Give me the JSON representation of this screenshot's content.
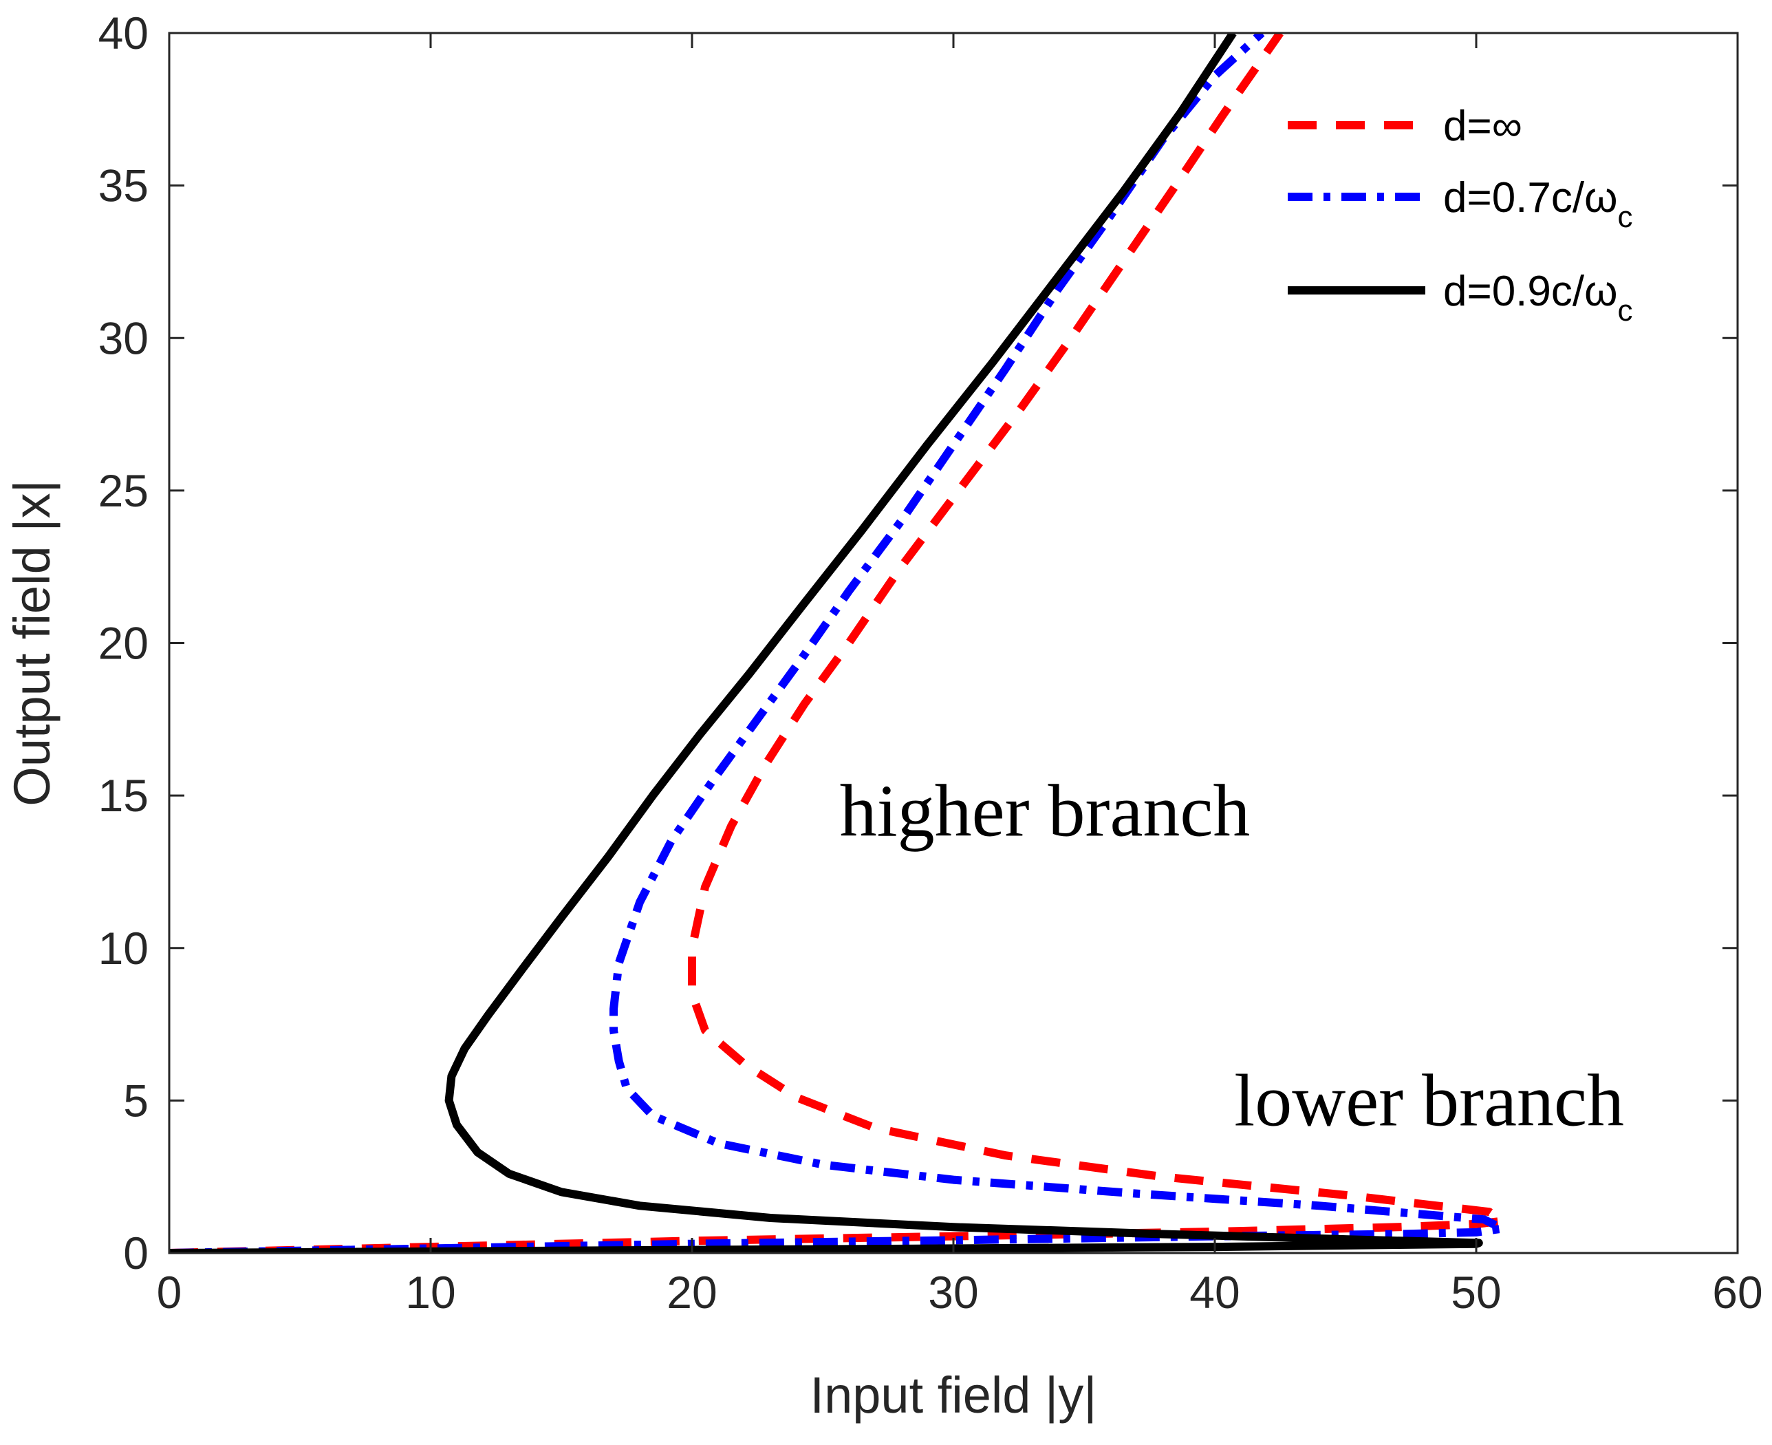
{
  "chart_data": {
    "type": "line",
    "title": "",
    "xlabel": "Input field |y|",
    "ylabel": "Output field |x|",
    "xlim": [
      0,
      60
    ],
    "ylim": [
      0,
      40
    ],
    "xticks": [
      0,
      10,
      20,
      30,
      40,
      50,
      60
    ],
    "yticks": [
      0,
      5,
      10,
      15,
      20,
      25,
      30,
      35,
      40
    ],
    "xtick_labels": [
      "0",
      "10",
      "20",
      "30",
      "40",
      "50",
      "60"
    ],
    "ytick_labels": [
      "0",
      "5",
      "10",
      "15",
      "20",
      "25",
      "30",
      "35",
      "40"
    ],
    "grid": false,
    "legend_position": "top-right",
    "series": [
      {
        "name": "d=∞",
        "legend_main": "d=∞",
        "legend_sub": "",
        "color": "#ff0000",
        "style": "dashed",
        "points": [
          [
            0,
            0
          ],
          [
            10,
            0.2
          ],
          [
            20,
            0.4
          ],
          [
            30,
            0.55
          ],
          [
            40,
            0.7
          ],
          [
            47,
            0.85
          ],
          [
            50,
            0.95
          ],
          [
            51,
            1.05
          ],
          [
            50.5,
            1.35
          ],
          [
            45,
            1.9
          ],
          [
            38,
            2.5
          ],
          [
            32,
            3.2
          ],
          [
            27,
            4.1
          ],
          [
            24,
            5.1
          ],
          [
            22,
            6.2
          ],
          [
            20.5,
            7.3
          ],
          [
            20,
            8.5
          ],
          [
            20,
            10
          ],
          [
            20.5,
            12
          ],
          [
            21.5,
            14
          ],
          [
            22.8,
            16
          ],
          [
            24.3,
            18
          ],
          [
            26,
            20
          ],
          [
            28,
            22.5
          ],
          [
            30.2,
            25
          ],
          [
            32.5,
            27.6
          ],
          [
            34.5,
            30
          ],
          [
            36.5,
            32.5
          ],
          [
            38.5,
            35
          ],
          [
            40.3,
            37.3
          ],
          [
            42.5,
            40
          ]
        ]
      },
      {
        "name": "d=0.7c/ωc",
        "legend_main": "d=0.7c/ω",
        "legend_sub": "c",
        "color": "#0000ff",
        "style": "dashdot",
        "points": [
          [
            0,
            0
          ],
          [
            10,
            0.15
          ],
          [
            20,
            0.3
          ],
          [
            30,
            0.42
          ],
          [
            40,
            0.55
          ],
          [
            47,
            0.62
          ],
          [
            50,
            0.68
          ],
          [
            51,
            0.8
          ],
          [
            50.3,
            1.1
          ],
          [
            44,
            1.55
          ],
          [
            37,
            1.95
          ],
          [
            30,
            2.4
          ],
          [
            25,
            2.9
          ],
          [
            21,
            3.6
          ],
          [
            18.5,
            4.5
          ],
          [
            17.5,
            5.4
          ],
          [
            17.2,
            6.3
          ],
          [
            17,
            7.3
          ],
          [
            17,
            8
          ],
          [
            17.2,
            9.5
          ],
          [
            18,
            11.5
          ],
          [
            19.2,
            13.5
          ],
          [
            20.8,
            15.5
          ],
          [
            22.5,
            17.5
          ],
          [
            24.2,
            19.5
          ],
          [
            26,
            21.7
          ],
          [
            28,
            24
          ],
          [
            30,
            26.5
          ],
          [
            32,
            29
          ],
          [
            34,
            31.6
          ],
          [
            36,
            34
          ],
          [
            38,
            36.5
          ],
          [
            40,
            38.6
          ],
          [
            41.8,
            40
          ]
        ]
      },
      {
        "name": "d=0.9c/ωc",
        "legend_main": "d=0.9c/ω",
        "legend_sub": "c",
        "color": "#000000",
        "style": "solid",
        "points": [
          [
            0,
            0
          ],
          [
            10,
            0.05
          ],
          [
            20,
            0.1
          ],
          [
            30,
            0.15
          ],
          [
            40,
            0.2
          ],
          [
            50,
            0.3
          ],
          [
            50.1,
            0.33
          ],
          [
            45,
            0.45
          ],
          [
            38,
            0.62
          ],
          [
            30,
            0.85
          ],
          [
            23,
            1.15
          ],
          [
            18,
            1.55
          ],
          [
            15,
            2
          ],
          [
            13,
            2.6
          ],
          [
            11.8,
            3.3
          ],
          [
            11,
            4.2
          ],
          [
            10.7,
            5
          ],
          [
            10.8,
            5.8
          ],
          [
            11.3,
            6.7
          ],
          [
            12.2,
            7.8
          ],
          [
            13.5,
            9.3
          ],
          [
            15,
            11
          ],
          [
            16.8,
            13
          ],
          [
            18.5,
            15
          ],
          [
            20.3,
            17
          ],
          [
            22.2,
            19
          ],
          [
            24.2,
            21.2
          ],
          [
            26.5,
            23.7
          ],
          [
            29,
            26.5
          ],
          [
            31.5,
            29.2
          ],
          [
            34,
            32
          ],
          [
            36.5,
            34.8
          ],
          [
            38.7,
            37.4
          ],
          [
            40.7,
            40
          ]
        ]
      }
    ],
    "annotations": [
      {
        "text": "higher branch",
        "x": 33.5,
        "y": 14.5
      },
      {
        "text": "lower branch",
        "x": 48.2,
        "y": 5
      }
    ]
  }
}
